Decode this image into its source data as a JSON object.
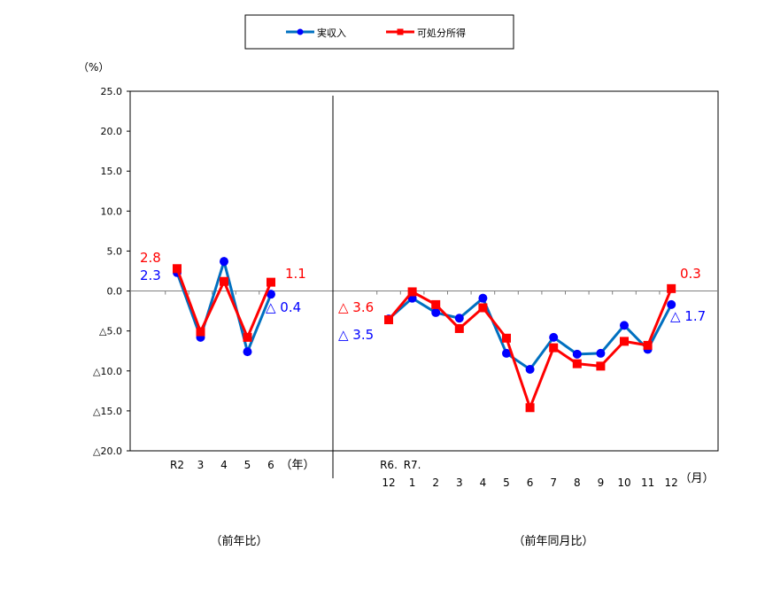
{
  "chart_data": {
    "type": "line",
    "ylabel": "（%）",
    "ylim": [
      -20,
      25
    ],
    "yticks": [
      25,
      20,
      15,
      10,
      5,
      0,
      -5,
      -10,
      -15,
      -20
    ],
    "ytick_labels": [
      "25.0",
      "20.0",
      "15.0",
      "10.0",
      "5.0",
      "0.0",
      "△5.0",
      "△10.0",
      "△15.0",
      "△20.0"
    ],
    "grid": false,
    "legend_position": "top",
    "colors": {
      "income": "#0070C0",
      "income_marker": "#0000FF",
      "disposable": "#FF0000"
    },
    "panels": [
      {
        "label": "（前年比）",
        "unit": "（年）",
        "categories": [
          [
            "R2",
            ""
          ],
          [
            "3",
            ""
          ],
          [
            "4",
            ""
          ],
          [
            "5",
            ""
          ],
          [
            "6",
            ""
          ]
        ],
        "series": [
          {
            "name": "実収入",
            "values": [
              2.3,
              -5.8,
              3.7,
              -7.6,
              -0.4
            ]
          },
          {
            "name": "可処分所得",
            "values": [
              2.8,
              -5.1,
              1.2,
              -5.8,
              1.1
            ]
          }
        ]
      },
      {
        "label": "（前年同月比）",
        "unit": "（月）",
        "categories": [
          [
            "R6.",
            "12"
          ],
          [
            "R7.",
            "1"
          ],
          [
            "",
            "2"
          ],
          [
            "",
            "3"
          ],
          [
            "",
            "4"
          ],
          [
            "",
            "5"
          ],
          [
            "",
            "6"
          ],
          [
            "",
            "7"
          ],
          [
            "",
            "8"
          ],
          [
            "",
            "9"
          ],
          [
            "",
            "10"
          ],
          [
            "",
            "11"
          ],
          [
            "",
            "12"
          ]
        ],
        "series": [
          {
            "name": "実収入",
            "values": [
              -3.5,
              -0.9,
              -2.7,
              -3.4,
              -0.9,
              -7.8,
              -9.8,
              -5.8,
              -7.9,
              -7.8,
              -4.3,
              -7.3,
              -1.7
            ]
          },
          {
            "name": "可処分所得",
            "values": [
              -3.6,
              -0.1,
              -1.7,
              -4.7,
              -2.1,
              -5.9,
              -14.6,
              -7.1,
              -9.1,
              -9.4,
              -6.3,
              -6.8,
              0.3
            ]
          }
        ]
      }
    ],
    "annotations": [
      {
        "text": "2.8",
        "color": "#FF0000"
      },
      {
        "text": "2.3",
        "color": "#0000FF"
      },
      {
        "text": "1.1",
        "color": "#FF0000"
      },
      {
        "text": "△ 0.4",
        "color": "#0000FF"
      },
      {
        "text": "△ 3.6",
        "color": "#FF0000"
      },
      {
        "text": "△ 3.5",
        "color": "#0000FF"
      },
      {
        "text": "0.3",
        "color": "#FF0000"
      },
      {
        "text": "△ 1.7",
        "color": "#0000FF"
      }
    ]
  }
}
